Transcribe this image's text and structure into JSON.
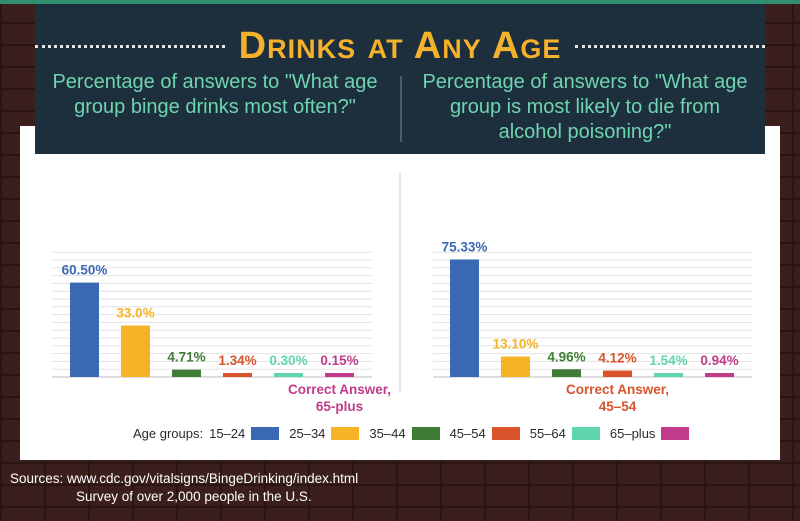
{
  "title": "Drinks at Any Age",
  "questions": {
    "left": "Percentage of answers to \"What age group binge drinks most often?\"",
    "right": "Percentage of answers to \"What age group is most likely to die from alcohol poisoning?\""
  },
  "legend": {
    "title": "Age groups:",
    "items": [
      {
        "label": "15–24",
        "color": "#3a68b2"
      },
      {
        "label": "25–34",
        "color": "#f5b325"
      },
      {
        "label": "35–44",
        "color": "#3f7c35"
      },
      {
        "label": "45–54",
        "color": "#d9532b"
      },
      {
        "label": "55–64",
        "color": "#5fd6ad"
      },
      {
        "label": "65–plus",
        "color": "#c13b8a"
      }
    ]
  },
  "sources": {
    "line1": "Sources: www.cdc.gov/vitalsigns/BingeDrinking/index.html",
    "line2": "Survey of over 2,000 people in the U.S."
  },
  "chart_data": [
    {
      "type": "bar",
      "title": "Percentage of answers to \"What age group binge drinks most often?\"",
      "categories": [
        "15–24",
        "25–34",
        "35–44",
        "45–54",
        "55–64",
        "65–plus"
      ],
      "values": [
        60.5,
        33.0,
        4.71,
        1.34,
        0.3,
        0.15
      ],
      "labels": [
        "60.50%",
        "33.0%",
        "4.71%",
        "1.34%",
        "0.30%",
        "0.15%"
      ],
      "colors": [
        "#3a68b2",
        "#f5b325",
        "#3f7c35",
        "#d9532b",
        "#5fd6ad",
        "#c13b8a"
      ],
      "annotation": {
        "line1": "Correct Answer,",
        "line2": "65-plus",
        "color": "#c13b8a",
        "category_index": 5
      },
      "ylim": [
        0,
        80
      ],
      "grid": true
    },
    {
      "type": "bar",
      "title": "Percentage of answers to \"What age group is most likely to die from alcohol poisoning?\"",
      "categories": [
        "15–24",
        "25–34",
        "35–44",
        "45–54",
        "55–64",
        "65–plus"
      ],
      "values": [
        75.33,
        13.1,
        4.96,
        4.12,
        1.54,
        0.94
      ],
      "labels": [
        "75.33%",
        "13.10%",
        "4.96%",
        "4.12%",
        "1.54%",
        "0.94%"
      ],
      "colors": [
        "#3a68b2",
        "#f5b325",
        "#3f7c35",
        "#d9532b",
        "#5fd6ad",
        "#c13b8a"
      ],
      "annotation": {
        "line1": "Correct Answer,",
        "line2": "45–54",
        "color": "#d9532b",
        "category_index": 3
      },
      "ylim": [
        0,
        80
      ],
      "grid": true
    }
  ]
}
